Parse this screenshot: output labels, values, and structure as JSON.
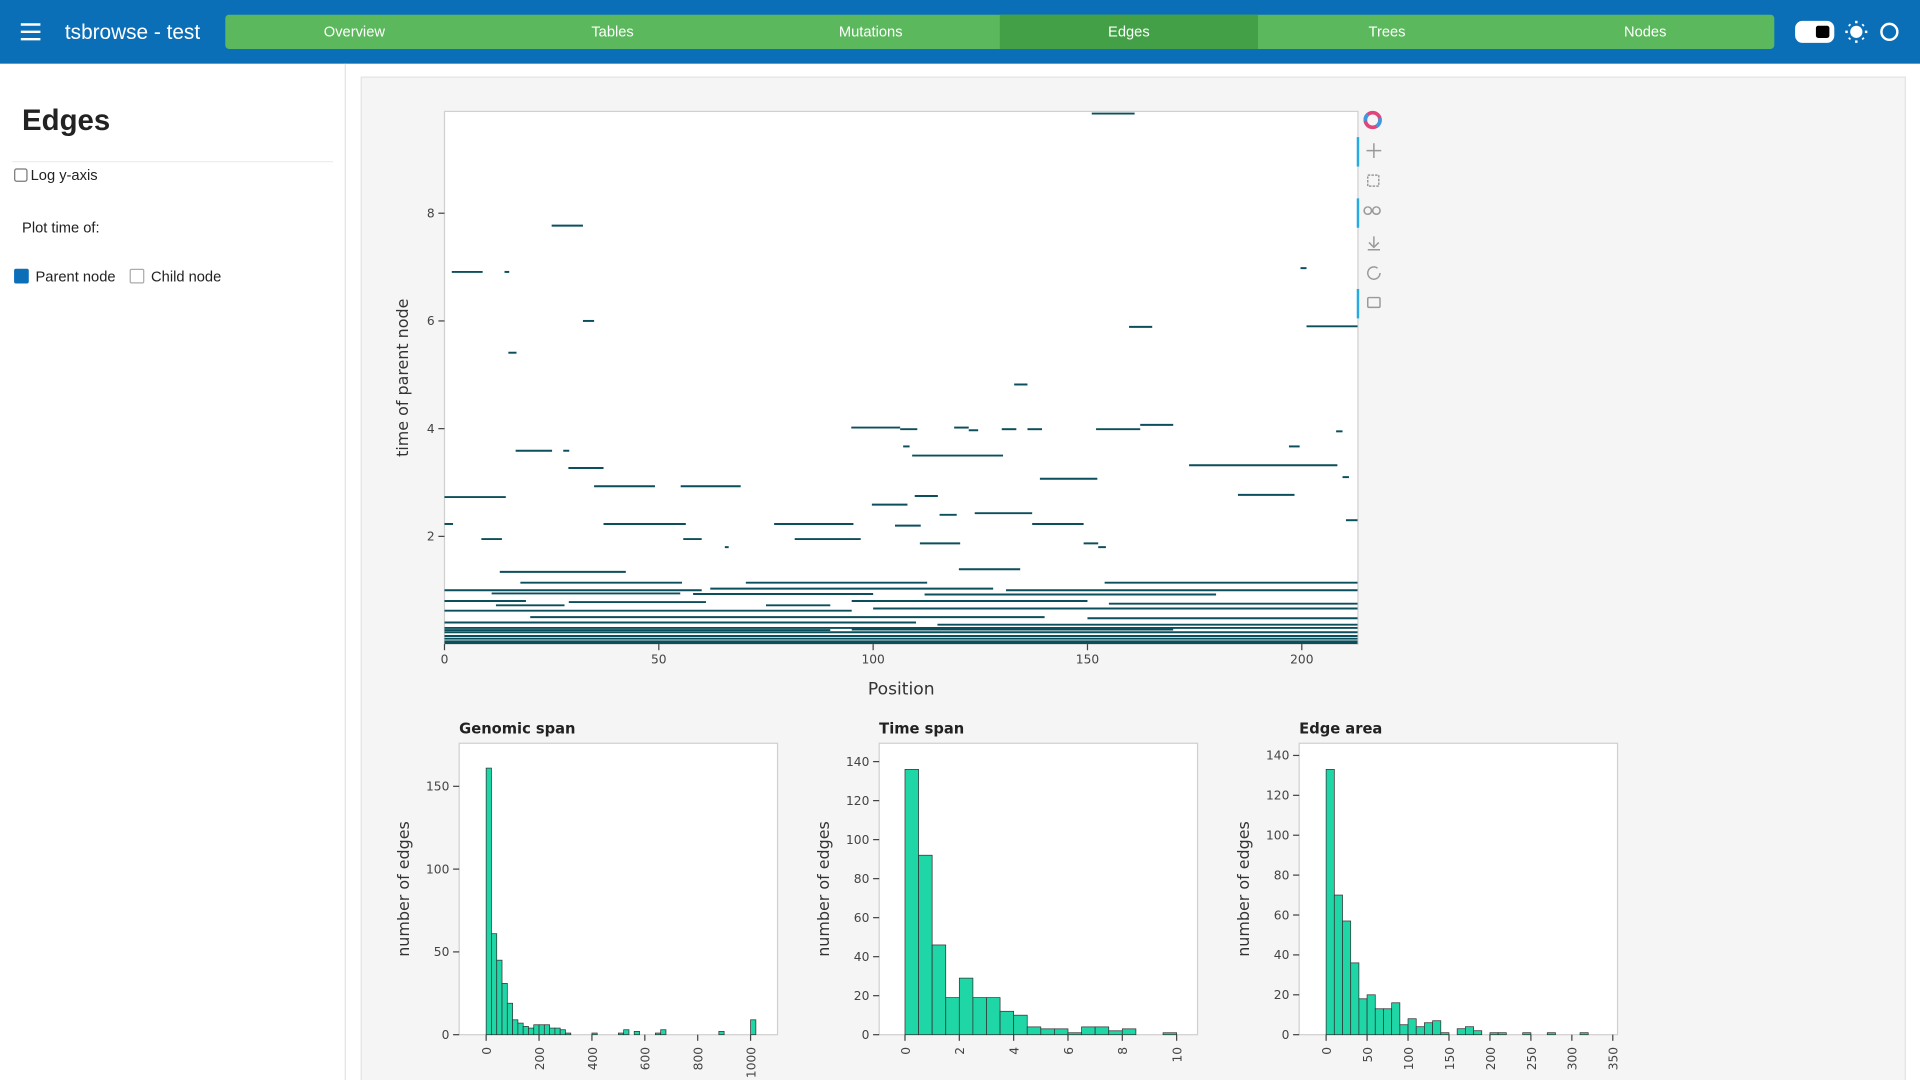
{
  "header": {
    "title": "tsbrowse - test",
    "nav": [
      "Overview",
      "Tables",
      "Mutations",
      "Edges",
      "Trees",
      "Nodes"
    ],
    "active_index": 3
  },
  "sidebar": {
    "title": "Edges",
    "log_y_label": "Log y-axis",
    "log_y": false,
    "plot_time_label": "Plot time of:",
    "options": [
      {
        "label": "Parent node",
        "checked": true
      },
      {
        "label": "Child node",
        "checked": false
      }
    ]
  },
  "chart_data": [
    {
      "type": "segments",
      "xlabel": "Position",
      "ylabel": "time of parent node",
      "color": "#0b4f5c",
      "xlim": [
        0,
        213.1
      ],
      "ylim": [
        0,
        9.89
      ],
      "xticks": [
        0,
        50,
        100,
        150,
        200
      ],
      "yticks": [
        2,
        4,
        6,
        8
      ],
      "segments": [
        {
          "left": 151,
          "right": 161,
          "time": 9.85
        },
        {
          "left": 25,
          "right": 32.3,
          "time": 7.77
        },
        {
          "left": 1.7,
          "right": 8.9,
          "time": 6.91
        },
        {
          "left": 14,
          "right": 15.1,
          "time": 6.91
        },
        {
          "left": 199.7,
          "right": 201.1,
          "time": 6.98
        },
        {
          "left": 32.3,
          "right": 34.9,
          "time": 6.0
        },
        {
          "left": 159.7,
          "right": 165.1,
          "time": 5.89
        },
        {
          "left": 201.1,
          "right": 213,
          "time": 5.9
        },
        {
          "left": 14.9,
          "right": 16.8,
          "time": 5.41
        },
        {
          "left": 132.9,
          "right": 136,
          "time": 4.82
        },
        {
          "left": 94.9,
          "right": 106.3,
          "time": 4.02
        },
        {
          "left": 106.3,
          "right": 110.3,
          "time": 3.99
        },
        {
          "left": 118.9,
          "right": 122.3,
          "time": 4.02
        },
        {
          "left": 122.3,
          "right": 124.5,
          "time": 3.97
        },
        {
          "left": 130,
          "right": 133.4,
          "time": 3.99
        },
        {
          "left": 136,
          "right": 139.4,
          "time": 3.99
        },
        {
          "left": 152,
          "right": 162.3,
          "time": 3.99
        },
        {
          "left": 162.3,
          "right": 170,
          "time": 4.07
        },
        {
          "left": 208,
          "right": 209.5,
          "time": 3.95
        },
        {
          "left": 197,
          "right": 199.5,
          "time": 3.67
        },
        {
          "left": 107,
          "right": 108.5,
          "time": 3.67
        },
        {
          "left": 16.6,
          "right": 25.1,
          "time": 3.59
        },
        {
          "left": 27.7,
          "right": 29.1,
          "time": 3.59
        },
        {
          "left": 109.1,
          "right": 130.3,
          "time": 3.5
        },
        {
          "left": 173.7,
          "right": 208.3,
          "time": 3.32
        },
        {
          "left": 28.9,
          "right": 37.1,
          "time": 3.27
        },
        {
          "left": 209.5,
          "right": 211,
          "time": 3.1
        },
        {
          "left": 138.9,
          "right": 152.3,
          "time": 3.07
        },
        {
          "left": 34.9,
          "right": 49.1,
          "time": 2.93
        },
        {
          "left": 55.1,
          "right": 69.1,
          "time": 2.93
        },
        {
          "left": 185.1,
          "right": 198.3,
          "time": 2.77
        },
        {
          "left": 0,
          "right": 14.3,
          "time": 2.73
        },
        {
          "left": 109.7,
          "right": 115.1,
          "time": 2.75
        },
        {
          "left": 99.7,
          "right": 108,
          "time": 2.59
        },
        {
          "left": 123.7,
          "right": 137.1,
          "time": 2.43
        },
        {
          "left": 115.5,
          "right": 119.5,
          "time": 2.4
        },
        {
          "left": 210.3,
          "right": 213,
          "time": 2.3
        },
        {
          "left": 0,
          "right": 2,
          "time": 2.23
        },
        {
          "left": 37.1,
          "right": 56.3,
          "time": 2.23
        },
        {
          "left": 76.9,
          "right": 95.4,
          "time": 2.23
        },
        {
          "left": 105.1,
          "right": 111.1,
          "time": 2.2
        },
        {
          "left": 137.1,
          "right": 149.1,
          "time": 2.23
        },
        {
          "left": 8.6,
          "right": 13.4,
          "time": 1.95
        },
        {
          "left": 55.7,
          "right": 60,
          "time": 1.95
        },
        {
          "left": 81.7,
          "right": 89,
          "time": 1.95
        },
        {
          "left": 89,
          "right": 97.1,
          "time": 1.95
        },
        {
          "left": 110.9,
          "right": 120.3,
          "time": 1.87
        },
        {
          "left": 149.1,
          "right": 152.5,
          "time": 1.87
        },
        {
          "left": 152.5,
          "right": 154.3,
          "time": 1.8
        },
        {
          "left": 65.4,
          "right": 66.3,
          "time": 1.8
        },
        {
          "left": 120,
          "right": 134.3,
          "time": 1.39
        },
        {
          "left": 12.9,
          "right": 42.3,
          "time": 1.34
        },
        {
          "left": 17.7,
          "right": 55.4,
          "time": 1.14
        },
        {
          "left": 70.3,
          "right": 112.6,
          "time": 1.14
        },
        {
          "left": 154,
          "right": 213,
          "time": 1.14
        },
        {
          "left": 0,
          "right": 60,
          "time": 1.0
        },
        {
          "left": 62,
          "right": 128,
          "time": 1.03
        },
        {
          "left": 131,
          "right": 213,
          "time": 1.0
        },
        {
          "left": 11,
          "right": 55,
          "time": 0.94
        },
        {
          "left": 58,
          "right": 100,
          "time": 0.93
        },
        {
          "left": 112,
          "right": 180,
          "time": 0.92
        },
        {
          "left": 0,
          "right": 19,
          "time": 0.8
        },
        {
          "left": 12,
          "right": 28,
          "time": 0.72
        },
        {
          "left": 29,
          "right": 61,
          "time": 0.78
        },
        {
          "left": 75,
          "right": 90,
          "time": 0.72
        },
        {
          "left": 95,
          "right": 150,
          "time": 0.8
        },
        {
          "left": 155,
          "right": 213,
          "time": 0.75
        },
        {
          "left": 0,
          "right": 95,
          "time": 0.62
        },
        {
          "left": 100,
          "right": 213,
          "time": 0.66
        },
        {
          "left": 20,
          "right": 140,
          "time": 0.5
        },
        {
          "left": 150,
          "right": 213,
          "time": 0.48
        },
        {
          "left": 0,
          "right": 110,
          "time": 0.4
        },
        {
          "left": 115,
          "right": 213,
          "time": 0.36
        },
        {
          "left": 0,
          "right": 213,
          "time": 0.3
        },
        {
          "left": 0,
          "right": 90,
          "time": 0.26
        },
        {
          "left": 95,
          "right": 170,
          "time": 0.27
        },
        {
          "left": 0,
          "right": 213,
          "time": 0.22
        },
        {
          "left": 0,
          "right": 213,
          "time": 0.15
        },
        {
          "left": 0,
          "right": 213,
          "time": 0.1
        },
        {
          "left": 0,
          "right": 213,
          "time": 0.05
        },
        {
          "left": 0,
          "right": 213,
          "time": 0.02
        }
      ]
    },
    {
      "type": "histogram",
      "title": "Genomic span",
      "ylabel": "number of edges",
      "color": "#1ed6a6",
      "xlim": [
        -102,
        1102
      ],
      "ylim": [
        0,
        176
      ],
      "xticks": [
        0,
        200,
        400,
        600,
        800,
        1000
      ],
      "yticks": [
        0,
        50,
        100,
        150
      ],
      "bins": [
        0,
        20,
        40,
        60,
        80,
        100,
        120,
        140,
        160,
        180,
        200,
        220,
        240,
        260,
        280,
        300,
        320,
        340,
        360,
        380,
        400,
        420,
        440,
        460,
        480,
        500,
        520,
        540,
        560,
        580,
        600,
        620,
        640,
        660,
        680,
        700,
        720,
        740,
        760,
        780,
        800,
        820,
        840,
        860,
        880,
        900,
        920,
        940,
        960,
        980,
        1000,
        1020
      ],
      "counts": [
        161,
        61,
        45,
        31,
        19,
        9,
        7,
        5,
        4,
        6,
        6,
        6,
        4,
        4,
        3,
        1,
        0,
        0,
        0,
        0,
        1,
        0,
        0,
        0,
        0,
        1,
        3,
        0,
        2,
        0,
        0,
        0,
        1,
        3,
        0,
        0,
        0,
        0,
        0,
        0,
        0,
        0,
        0,
        0,
        2,
        0,
        0,
        0,
        0,
        0,
        9
      ]
    },
    {
      "type": "histogram",
      "title": "Time span",
      "ylabel": "number of edges",
      "color": "#1ed6a6",
      "xlim": [
        -0.95,
        10.77
      ],
      "ylim": [
        0,
        149.4
      ],
      "xticks": [
        0,
        2,
        4,
        6,
        8,
        10
      ],
      "yticks": [
        0,
        20,
        40,
        60,
        80,
        100,
        120,
        140
      ],
      "bins": [
        0,
        0.5,
        1,
        1.5,
        2,
        2.5,
        3,
        3.5,
        4,
        4.5,
        5,
        5.5,
        6,
        6.5,
        7,
        7.5,
        8,
        8.5,
        9,
        9.5,
        10
      ],
      "counts": [
        136,
        92,
        46,
        19,
        29,
        19,
        19,
        12,
        10,
        4,
        3,
        3,
        1,
        4,
        4,
        2,
        3,
        0,
        0,
        1
      ]
    },
    {
      "type": "histogram",
      "title": "Edge area",
      "ylabel": "number of edges",
      "color": "#1ed6a6",
      "xlim": [
        -32.9,
        355.8
      ],
      "ylim": [
        0,
        146.1
      ],
      "xticks": [
        0,
        50,
        100,
        150,
        200,
        250,
        300,
        350
      ],
      "yticks": [
        0,
        20,
        40,
        60,
        80,
        100,
        120,
        140
      ],
      "bins": [
        0,
        10,
        20,
        30,
        40,
        50,
        60,
        70,
        80,
        90,
        100,
        110,
        120,
        130,
        140,
        150,
        160,
        170,
        180,
        190,
        200,
        210,
        220,
        230,
        240,
        250,
        260,
        270,
        280,
        290,
        300,
        310,
        320,
        330,
        340
      ],
      "counts": [
        133,
        70,
        57,
        36,
        18,
        20,
        13,
        13,
        16,
        5,
        8,
        4,
        6,
        7,
        1,
        0,
        3,
        4,
        2,
        0,
        1,
        1,
        0,
        0,
        1,
        0,
        0,
        1,
        0,
        0,
        0,
        1,
        0,
        0
      ]
    }
  ]
}
